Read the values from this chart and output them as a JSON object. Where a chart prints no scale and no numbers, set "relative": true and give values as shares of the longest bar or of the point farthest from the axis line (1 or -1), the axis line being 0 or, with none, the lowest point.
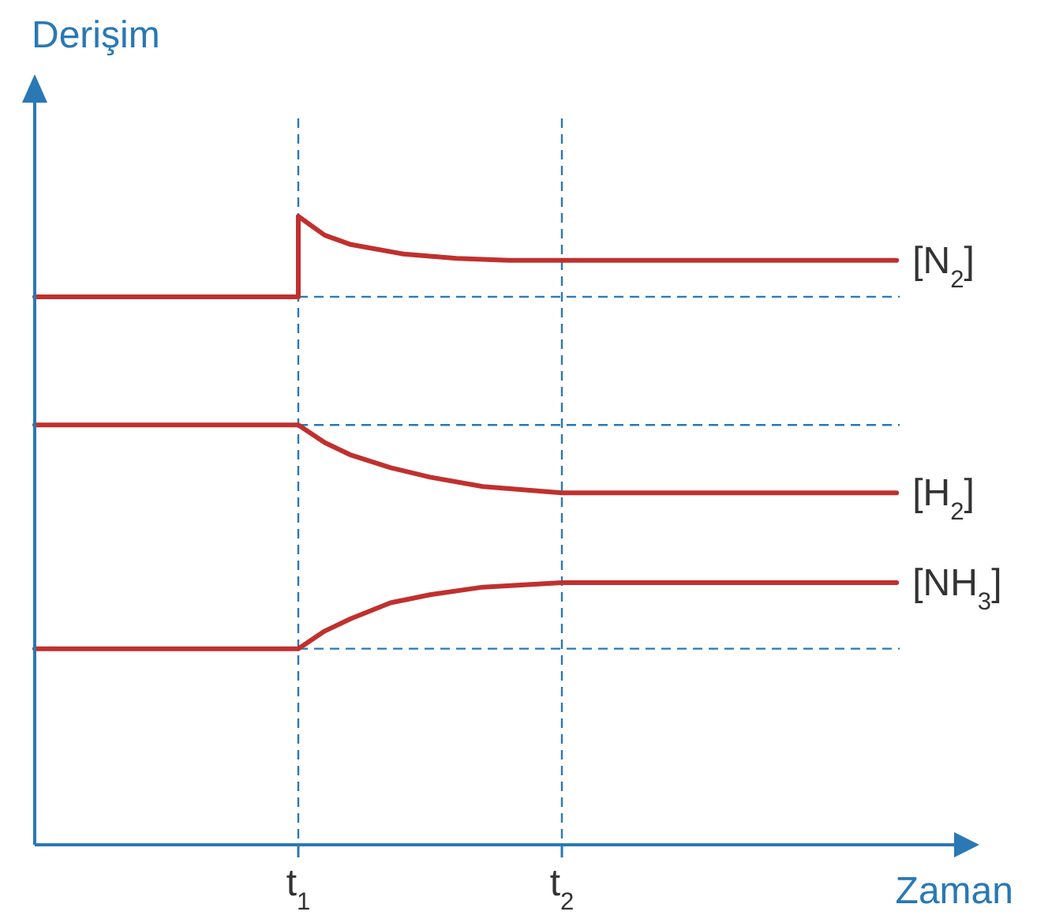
{
  "chart_data": {
    "type": "line",
    "relative": true,
    "xlabel": "Zaman",
    "ylabel": "Derişim",
    "xlim": [
      0,
      3.5
    ],
    "xticks": [
      {
        "value": 1,
        "label": "t$_{1}$"
      },
      {
        "value": 2,
        "label": "t$_{2}$"
      }
    ],
    "tick_labels": "x",
    "grid": false,
    "legend": false,
    "marker": "none",
    "line_style": "solid",
    "series": [
      {
        "name": "[N$_{2}$]",
        "color": "#c0302e",
        "x": [
          0,
          1,
          1,
          1.1,
          1.2,
          1.4,
          1.6,
          1.8,
          2,
          3.27
        ],
        "values": [
          0.872,
          0.872,
          1.0,
          0.97,
          0.955,
          0.94,
          0.933,
          0.93,
          0.93,
          0.93
        ]
      },
      {
        "name": "[H$_{2}$]",
        "color": "#c0302e",
        "x": [
          0,
          1,
          1.1,
          1.2,
          1.35,
          1.5,
          1.7,
          2,
          3.27
        ],
        "values": [
          0.668,
          0.668,
          0.64,
          0.62,
          0.6,
          0.585,
          0.57,
          0.56,
          0.56
        ]
      },
      {
        "name": "[NH$_{3}$]",
        "color": "#c0302e",
        "x": [
          0,
          1,
          1.1,
          1.2,
          1.35,
          1.5,
          1.7,
          2,
          3.27
        ],
        "values": [
          0.312,
          0.312,
          0.34,
          0.36,
          0.385,
          0.398,
          0.41,
          0.417,
          0.417
        ]
      }
    ],
    "ref_lines": [
      {
        "axis": "x",
        "value": 1,
        "color": "#2a78b4",
        "line_style": "dashed"
      },
      {
        "axis": "x",
        "value": 2,
        "color": "#2a78b4",
        "line_style": "dashed"
      },
      {
        "axis": "y",
        "value": 0.872,
        "color": "#2a78b4",
        "line_style": "dashed"
      },
      {
        "axis": "y",
        "value": 0.668,
        "color": "#2a78b4",
        "line_style": "dashed"
      },
      {
        "axis": "y",
        "value": 0.312,
        "color": "#2a78b4",
        "line_style": "dashed"
      }
    ]
  }
}
